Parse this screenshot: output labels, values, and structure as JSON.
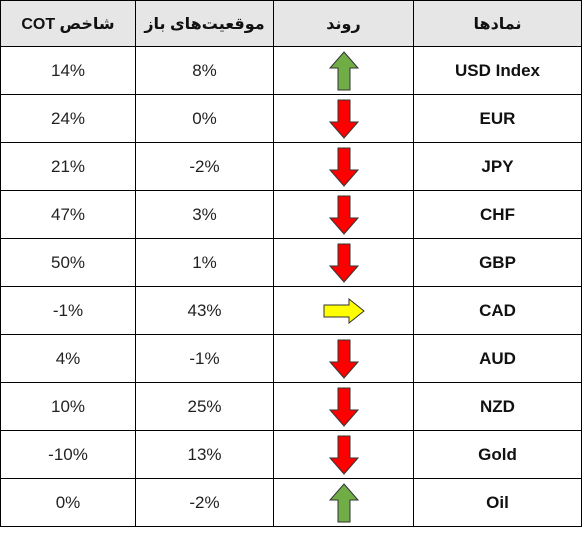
{
  "headers": {
    "cot": "شاخص COT",
    "open_positions": "موقعیت‌های باز",
    "trend": "روند",
    "symbols": "نمادها"
  },
  "colors": {
    "up": "#70ad47",
    "down": "#ff0000",
    "neutral": "#ffff00",
    "header_bg": "#e7e6e6"
  },
  "rows": [
    {
      "symbol": "USD Index",
      "trend": "up",
      "open_positions": "8%",
      "cot": "14%"
    },
    {
      "symbol": "EUR",
      "trend": "down",
      "open_positions": "0%",
      "cot": "24%"
    },
    {
      "symbol": "JPY",
      "trend": "down",
      "open_positions": "-2%",
      "cot": "21%"
    },
    {
      "symbol": "CHF",
      "trend": "down",
      "open_positions": "3%",
      "cot": "47%"
    },
    {
      "symbol": "GBP",
      "trend": "down",
      "open_positions": "1%",
      "cot": "50%"
    },
    {
      "symbol": "CAD",
      "trend": "right",
      "open_positions": "43%",
      "cot": "-1%"
    },
    {
      "symbol": "AUD",
      "trend": "down",
      "open_positions": "-1%",
      "cot": "4%"
    },
    {
      "symbol": "NZD",
      "trend": "down",
      "open_positions": "25%",
      "cot": "10%"
    },
    {
      "symbol": "Gold",
      "trend": "down",
      "open_positions": "13%",
      "cot": "-10%"
    },
    {
      "symbol": "Oil",
      "trend": "up",
      "open_positions": "-2%",
      "cot": "0%"
    }
  ]
}
